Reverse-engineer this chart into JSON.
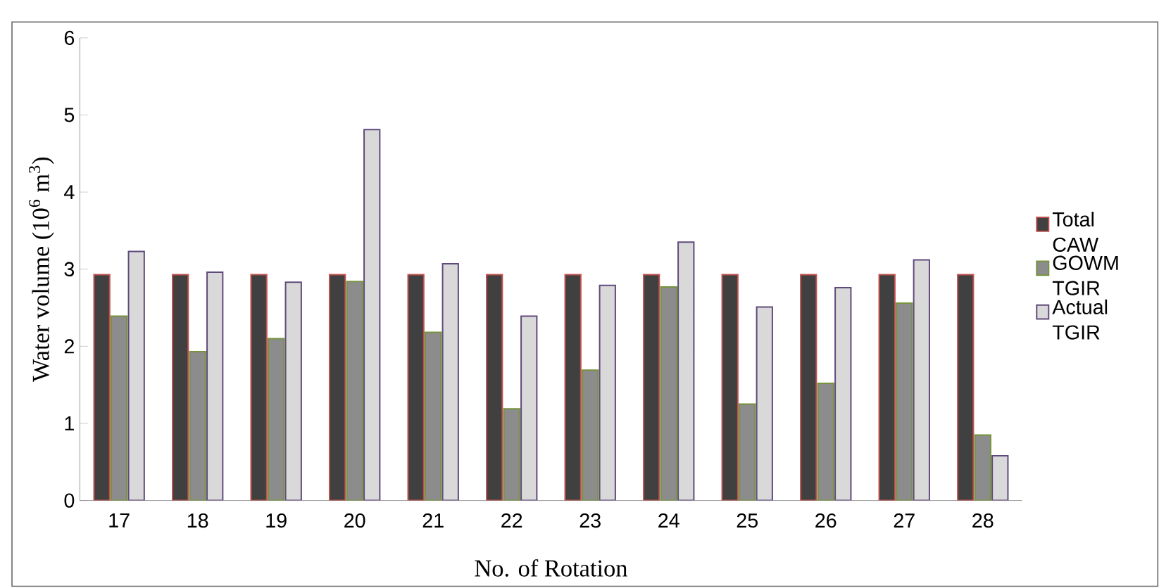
{
  "chart_data": {
    "type": "bar",
    "xlabel": "No. of Rotation",
    "ylabel": "Water volume (10$^{6}$ m$^{3}$)",
    "categories": [
      "17",
      "18",
      "19",
      "20",
      "21",
      "22",
      "23",
      "24",
      "25",
      "26",
      "27",
      "28"
    ],
    "series": [
      {
        "name": "Total CAW",
        "color": "#404040",
        "values": [
          2.93,
          2.93,
          2.93,
          2.93,
          2.93,
          2.93,
          2.93,
          2.93,
          2.93,
          2.93,
          2.93,
          2.93
        ]
      },
      {
        "name": "GOWM TGIR",
        "color": "#8c8c8c",
        "values": [
          2.39,
          1.93,
          2.1,
          2.84,
          2.18,
          1.19,
          1.69,
          2.77,
          1.25,
          1.52,
          2.56,
          0.85
        ]
      },
      {
        "name": "Actual TGIR",
        "color": "#d9d9d9",
        "values": [
          3.23,
          2.96,
          2.83,
          4.81,
          3.07,
          2.39,
          2.79,
          3.35,
          2.51,
          2.76,
          3.12,
          0.58
        ]
      }
    ],
    "ylim": [
      0,
      6
    ],
    "yticks": [
      0,
      1,
      2,
      3,
      4,
      5,
      6
    ],
    "grid": false,
    "legend": "right"
  }
}
